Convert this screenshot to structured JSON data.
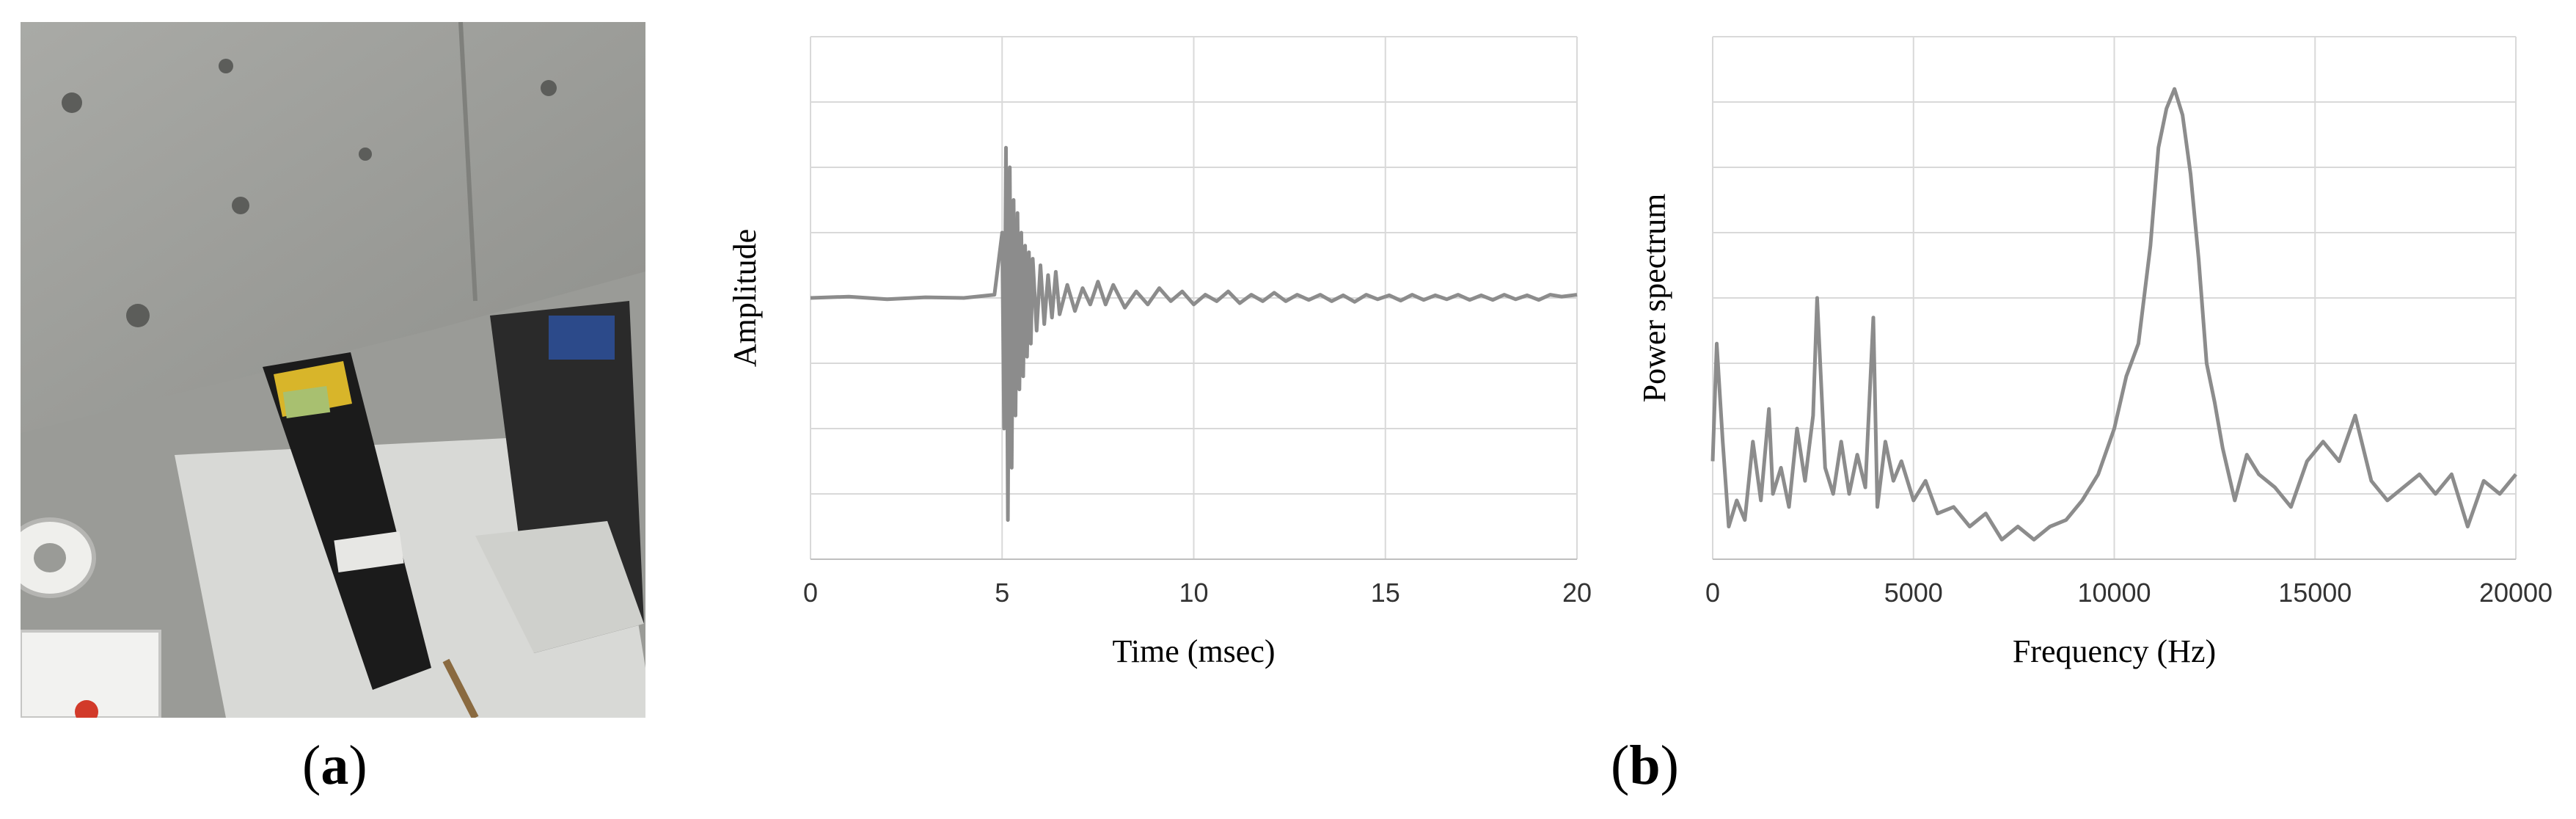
{
  "panels": {
    "a_letter": "a",
    "b_letter": "b"
  },
  "chart_data": [
    {
      "type": "line",
      "title": "",
      "xlabel": "Time (msec)",
      "ylabel": "Amplitude",
      "xlim": [
        0,
        20
      ],
      "ylim": [
        -4,
        4
      ],
      "xticks": [
        0,
        5,
        10,
        15,
        20
      ],
      "grid": true,
      "series_color": "#8c8c8c",
      "series": [
        {
          "x": [
            0,
            1,
            2,
            3,
            4,
            4.8,
            5.0,
            5.05,
            5.1,
            5.15,
            5.2,
            5.25,
            5.3,
            5.35,
            5.4,
            5.45,
            5.5,
            5.55,
            5.6,
            5.65,
            5.7,
            5.75,
            5.8,
            5.9,
            6.0,
            6.1,
            6.2,
            6.3,
            6.4,
            6.5,
            6.7,
            6.9,
            7.1,
            7.3,
            7.5,
            7.7,
            7.9,
            8.2,
            8.5,
            8.8,
            9.1,
            9.4,
            9.7,
            10.0,
            10.3,
            10.6,
            10.9,
            11.2,
            11.5,
            11.8,
            12.1,
            12.4,
            12.7,
            13.0,
            13.3,
            13.6,
            13.9,
            14.2,
            14.5,
            14.8,
            15.1,
            15.4,
            15.7,
            16.0,
            16.3,
            16.6,
            16.9,
            17.2,
            17.5,
            17.8,
            18.1,
            18.4,
            18.7,
            19.0,
            19.3,
            19.6,
            20.0
          ],
          "y": [
            0.0,
            0.02,
            -0.02,
            0.01,
            0.0,
            0.05,
            1.0,
            -2.0,
            2.3,
            -3.4,
            2.0,
            -2.6,
            1.5,
            -1.8,
            1.3,
            -1.4,
            1.0,
            -1.2,
            0.8,
            -0.9,
            0.7,
            -0.7,
            0.6,
            -0.5,
            0.5,
            -0.4,
            0.35,
            -0.3,
            0.4,
            -0.25,
            0.2,
            -0.2,
            0.15,
            -0.1,
            0.25,
            -0.1,
            0.2,
            -0.15,
            0.1,
            -0.1,
            0.15,
            -0.05,
            0.1,
            -0.1,
            0.05,
            -0.05,
            0.1,
            -0.08,
            0.05,
            -0.05,
            0.08,
            -0.05,
            0.05,
            -0.03,
            0.05,
            -0.05,
            0.04,
            -0.06,
            0.05,
            -0.02,
            0.04,
            -0.04,
            0.05,
            -0.03,
            0.04,
            -0.02,
            0.05,
            -0.03,
            0.04,
            -0.03,
            0.05,
            -0.02,
            0.04,
            -0.03,
            0.05,
            0.02,
            0.05
          ]
        }
      ]
    },
    {
      "type": "line",
      "title": "",
      "xlabel": "Frequency (Hz)",
      "ylabel": "Power spectrum",
      "xlim": [
        0,
        20000
      ],
      "ylim": [
        0,
        8
      ],
      "xticks": [
        0,
        5000,
        10000,
        15000,
        20000
      ],
      "grid": true,
      "series_color": "#8c8c8c",
      "series": [
        {
          "x": [
            0,
            100,
            250,
            400,
            600,
            800,
            1000,
            1200,
            1400,
            1500,
            1700,
            1900,
            2100,
            2300,
            2500,
            2600,
            2800,
            3000,
            3200,
            3400,
            3600,
            3800,
            4000,
            4100,
            4300,
            4500,
            4700,
            5000,
            5300,
            5600,
            6000,
            6400,
            6800,
            7200,
            7600,
            8000,
            8400,
            8800,
            9200,
            9600,
            10000,
            10300,
            10600,
            10900,
            11100,
            11300,
            11500,
            11700,
            11900,
            12100,
            12300,
            12500,
            12700,
            13000,
            13300,
            13600,
            14000,
            14400,
            14800,
            15200,
            15600,
            16000,
            16400,
            16800,
            17200,
            17600,
            18000,
            18400,
            18800,
            19200,
            19600,
            20000
          ],
          "y": [
            1.5,
            3.3,
            1.8,
            0.5,
            0.9,
            0.6,
            1.8,
            0.9,
            2.3,
            1.0,
            1.4,
            0.8,
            2.0,
            1.2,
            2.2,
            4.0,
            1.4,
            1.0,
            1.8,
            1.0,
            1.6,
            1.1,
            3.7,
            0.8,
            1.8,
            1.2,
            1.5,
            0.9,
            1.2,
            0.7,
            0.8,
            0.5,
            0.7,
            0.3,
            0.5,
            0.3,
            0.5,
            0.6,
            0.9,
            1.3,
            2.0,
            2.8,
            3.3,
            4.8,
            6.3,
            6.9,
            7.2,
            6.8,
            5.9,
            4.6,
            3.0,
            2.4,
            1.7,
            0.9,
            1.6,
            1.3,
            1.1,
            0.8,
            1.5,
            1.8,
            1.5,
            2.2,
            1.2,
            0.9,
            1.1,
            1.3,
            1.0,
            1.3,
            0.5,
            1.2,
            1.0,
            1.3
          ]
        }
      ]
    }
  ]
}
